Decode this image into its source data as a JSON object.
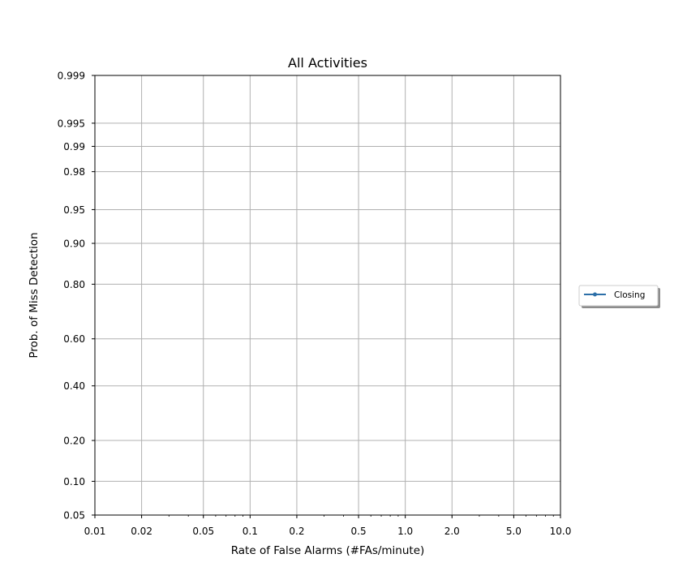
{
  "chart_data": {
    "type": "line",
    "title": "All Activities",
    "xlabel": "Rate of False Alarms (#FAs/minute)",
    "ylabel": "Prob. of Miss Detection",
    "x_scale": "log",
    "y_scale": "normal-deviate",
    "xlim": [
      0.01,
      10.0
    ],
    "ylim": [
      0.05,
      0.999
    ],
    "x_ticks": [
      {
        "value": 0.01,
        "label": "0.01"
      },
      {
        "value": 0.02,
        "label": "0.02"
      },
      {
        "value": 0.05,
        "label": "0.05"
      },
      {
        "value": 0.1,
        "label": "0.1"
      },
      {
        "value": 0.2,
        "label": "0.2"
      },
      {
        "value": 0.5,
        "label": "0.5"
      },
      {
        "value": 1.0,
        "label": "1.0"
      },
      {
        "value": 2.0,
        "label": "2.0"
      },
      {
        "value": 5.0,
        "label": "5.0"
      },
      {
        "value": 10.0,
        "label": "10.0"
      }
    ],
    "y_ticks": [
      {
        "value": 0.05,
        "label": "0.05"
      },
      {
        "value": 0.1,
        "label": "0.10"
      },
      {
        "value": 0.2,
        "label": "0.20"
      },
      {
        "value": 0.4,
        "label": "0.40"
      },
      {
        "value": 0.6,
        "label": "0.60"
      },
      {
        "value": 0.8,
        "label": "0.80"
      },
      {
        "value": 0.9,
        "label": "0.90"
      },
      {
        "value": 0.95,
        "label": "0.95"
      },
      {
        "value": 0.98,
        "label": "0.98"
      },
      {
        "value": 0.99,
        "label": "0.99"
      },
      {
        "value": 0.995,
        "label": "0.995"
      },
      {
        "value": 0.999,
        "label": "0.999"
      }
    ],
    "grid": true,
    "legend_position": "right-outside",
    "series": [
      {
        "name": "Closing",
        "color": "#2c6fa8",
        "marker": "dot",
        "points": []
      }
    ]
  }
}
